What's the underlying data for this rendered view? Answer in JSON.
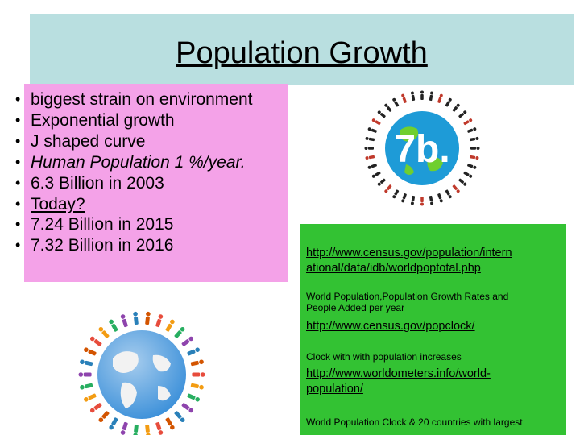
{
  "slide": {
    "title": "Population Growth",
    "bullets": [
      {
        "text": "biggest strain on environment",
        "style": "normal"
      },
      {
        "text": "Exponential growth",
        "style": "normal"
      },
      {
        "text": "J shaped curve",
        "style": "normal"
      },
      {
        "text": "Human Population 1 %/year.",
        "style": "italic"
      },
      {
        "text": "6.3 Billion in 2003",
        "style": "normal"
      },
      {
        "text": "Today?",
        "style": "underline"
      },
      {
        "text": "7.24 Billion in 2015",
        "style": "normal"
      },
      {
        "text": "7.32 Billion in 2016",
        "style": "normal"
      }
    ],
    "bullet_glyph": "•",
    "globe_label": "7b.",
    "links": [
      {
        "url_line1": "http://www.census.gov/population/intern",
        "url_line2": "ational/data/idb/worldpoptotal.php",
        "caption_line1": "World Population,Population Growth Rates and",
        "caption_line2": "People Added per year"
      },
      {
        "url_line1": "http://www.census.gov/popclock/",
        "caption_line1": "Clock with with population increases"
      },
      {
        "url_line1": "http://www.worldometers.info/world-",
        "url_line2": "population/",
        "caption_line1": "World Population Clock & 20 countries with largest"
      }
    ],
    "colors": {
      "title_bg": "#b9dfe0",
      "bullets_bg": "#f4a2e8",
      "links_bg": "#33c233",
      "globe_blue": "#1e9bd7",
      "globe_green": "#6fcf2f"
    }
  }
}
